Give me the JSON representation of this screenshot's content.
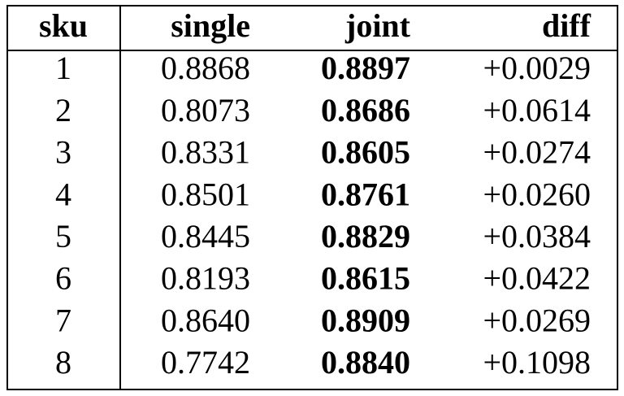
{
  "table": {
    "header": [
      "sku",
      "single",
      "joint",
      "diff"
    ],
    "rows": [
      [
        "1",
        "0.8868",
        "0.8897",
        "+0.0029"
      ],
      [
        "2",
        "0.8073",
        "0.8686",
        "+0.0614"
      ],
      [
        "3",
        "0.8331",
        "0.8605",
        "+0.0274"
      ],
      [
        "4",
        "0.8501",
        "0.8761",
        "+0.0260"
      ],
      [
        "5",
        "0.8445",
        "0.8829",
        "+0.0384"
      ],
      [
        "6",
        "0.8193",
        "0.8615",
        "+0.0422"
      ],
      [
        "7",
        "0.8640",
        "0.8909",
        "+0.0269"
      ],
      [
        "8",
        "0.7742",
        "0.8840",
        "+0.1098"
      ]
    ]
  }
}
